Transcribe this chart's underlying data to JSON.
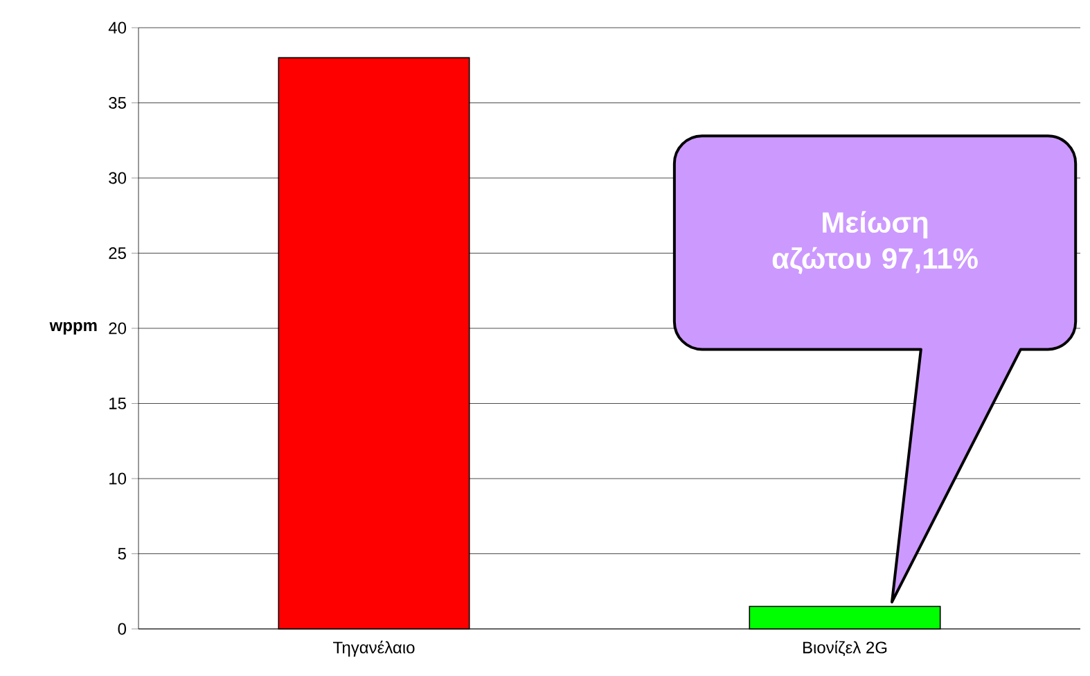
{
  "chart_data": {
    "type": "bar",
    "categories": [
      "Τηγανέλαιο",
      "Βιονίζελ 2G"
    ],
    "values": [
      38,
      1.5
    ],
    "colors": [
      "#ff0000",
      "#00ff00"
    ],
    "ylabel": "wppm",
    "ylim": [
      0,
      40
    ],
    "yticks": [
      0,
      5,
      10,
      15,
      20,
      25,
      30,
      35,
      40
    ],
    "grid": "y",
    "annotations": [
      "Μείωση αζώτου 97,11%"
    ]
  }
}
